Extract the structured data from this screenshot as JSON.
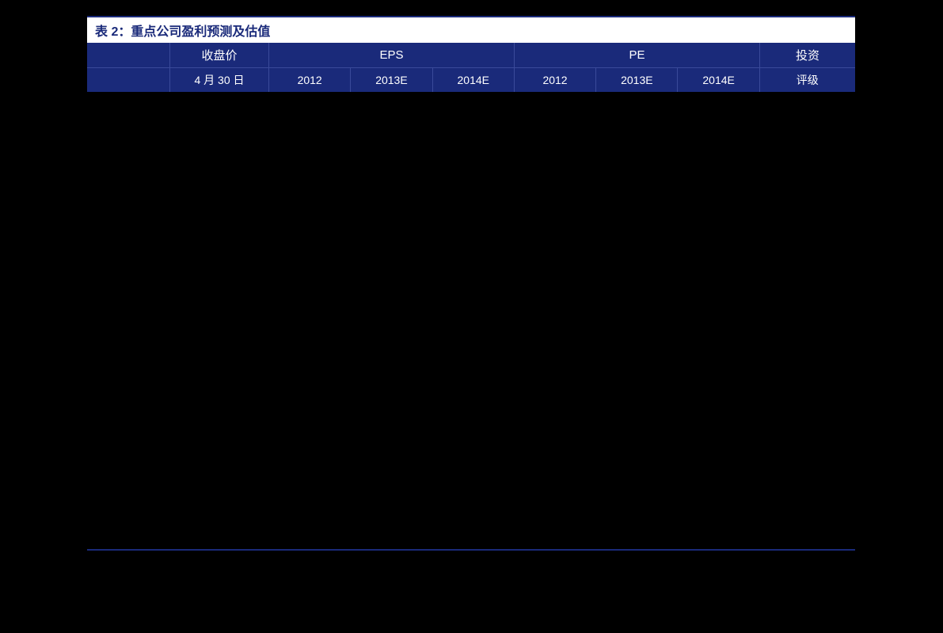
{
  "table": {
    "title": "表 2：重点公司盈利预测及估值",
    "header_row1": {
      "blank": "",
      "price": "收盘价",
      "eps": "EPS",
      "pe": "PE",
      "rating": "投资"
    },
    "header_row2": {
      "blank": "",
      "date": "4 月 30 日",
      "eps_2012": "2012",
      "eps_2013e": "2013E",
      "eps_2014e": "2014E",
      "pe_2012": "2012",
      "pe_2013e": "2013E",
      "pe_2014e": "2014E",
      "rating": "评级"
    },
    "styling": {
      "title_bg": "#ffffff",
      "title_color": "#1a2a7a",
      "header_bg": "#1a2a7a",
      "header_text_color": "#ffffff",
      "border_color": "#3a4a9a",
      "accent_line_color": "#1a2a7a",
      "body_bg": "#000000",
      "title_fontsize": 16,
      "header_fontsize": 15,
      "subheader_fontsize": 14
    },
    "column_widths": {
      "blank": 105,
      "price": 125,
      "eps_group": 310,
      "pe_group": 310,
      "rating": 120,
      "sub": 103.3
    }
  }
}
